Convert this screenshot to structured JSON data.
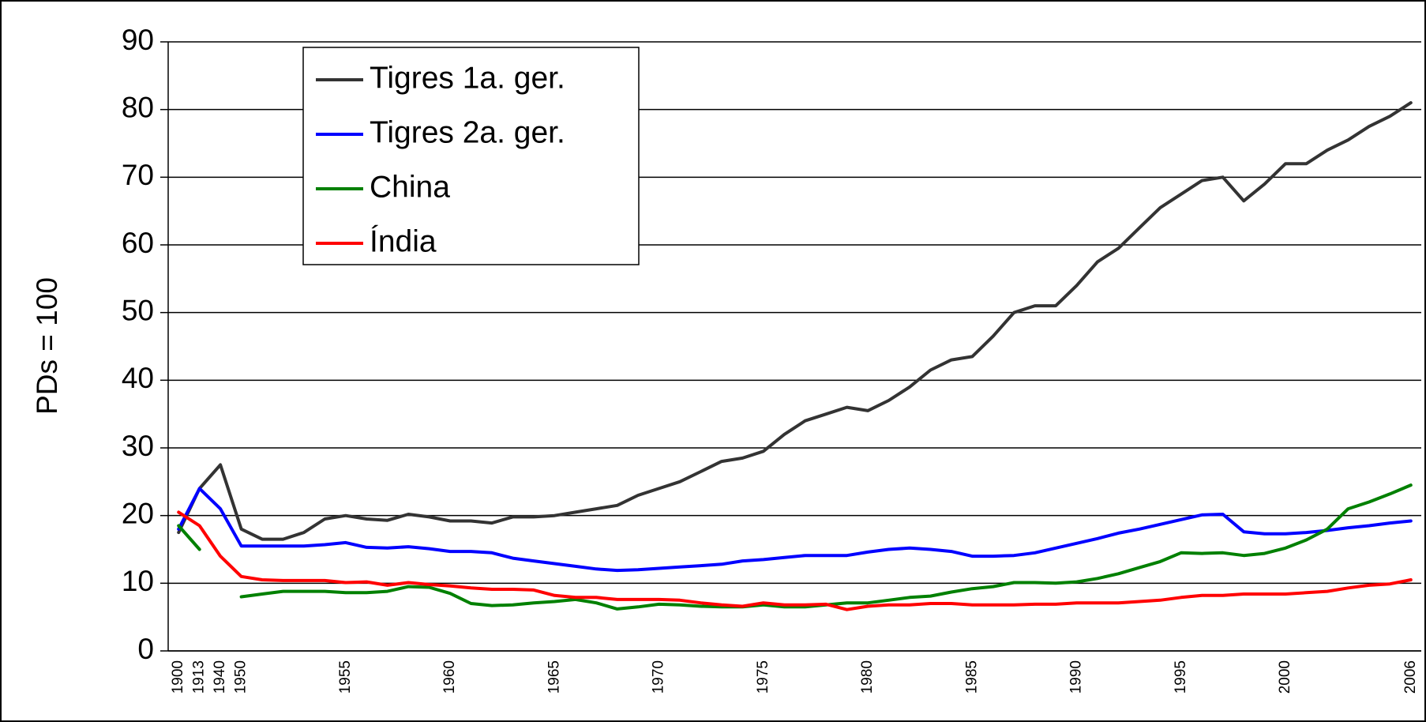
{
  "chart_data": {
    "type": "line",
    "y_label": "PDs = 100",
    "categories": [
      "1900",
      "1913",
      "1940",
      "1950",
      null,
      null,
      null,
      null,
      "1955",
      null,
      null,
      null,
      null,
      "1960",
      null,
      null,
      null,
      null,
      "1965",
      null,
      null,
      null,
      null,
      "1970",
      null,
      null,
      null,
      null,
      "1975",
      null,
      null,
      null,
      null,
      "1980",
      null,
      null,
      null,
      null,
      "1985",
      null,
      null,
      null,
      null,
      "1990",
      null,
      null,
      null,
      null,
      "1995",
      null,
      null,
      null,
      null,
      "2000",
      null,
      null,
      null,
      null,
      null,
      "2006"
    ],
    "series": [
      {
        "name": "Tigres 1a. ger.",
        "color": "#333333",
        "values": [
          17.5,
          24,
          27.5,
          18,
          16.5,
          16.5,
          17.5,
          19.5,
          20,
          19.5,
          19.3,
          20.2,
          19.8,
          19.2,
          19.2,
          18.9,
          19.8,
          19.8,
          20,
          20.5,
          21,
          21.5,
          23,
          24,
          25,
          26.5,
          28,
          28.5,
          29.5,
          32,
          34,
          35,
          36,
          35.5,
          37,
          39,
          41.5,
          43,
          43.5,
          46.5,
          50,
          51,
          51,
          54,
          57.5,
          59.5,
          62.5,
          65.5,
          67.5,
          69.5,
          70,
          66.5,
          69,
          72,
          72,
          74,
          75.5,
          77.5,
          79,
          81
        ]
      },
      {
        "name": "Tigres 2a. ger.",
        "color": "#0000ff",
        "values": [
          18,
          24,
          21,
          15.5,
          15.5,
          15.5,
          15.5,
          15.7,
          16,
          15.3,
          15.2,
          15.4,
          15.1,
          14.7,
          14.7,
          14.5,
          13.7,
          13.3,
          12.9,
          12.5,
          12.1,
          11.9,
          12,
          12.2,
          12.4,
          12.6,
          12.8,
          13.3,
          13.5,
          13.8,
          14.1,
          14.1,
          14.1,
          14.6,
          15,
          15.2,
          15,
          14.7,
          14,
          14,
          14.1,
          14.5,
          15.2,
          15.9,
          16.6,
          17.4,
          18,
          18.7,
          19.4,
          20.1,
          20.2,
          17.6,
          17.3,
          17.3,
          17.5,
          17.8,
          18.2,
          18.5,
          18.9,
          19.2
        ]
      },
      {
        "name": "China",
        "color": "#008000",
        "values": [
          18.5,
          15,
          null,
          8,
          8.4,
          8.8,
          8.8,
          8.8,
          8.6,
          8.6,
          8.8,
          9.5,
          9.4,
          8.5,
          7,
          6.7,
          6.8,
          7.1,
          7.3,
          7.6,
          7.1,
          6.2,
          6.5,
          6.9,
          6.8,
          6.6,
          6.5,
          6.5,
          6.8,
          6.5,
          6.5,
          6.8,
          7.1,
          7.1,
          7.5,
          7.9,
          8.1,
          8.7,
          9.2,
          9.5,
          10.1,
          10.1,
          10,
          10.2,
          10.7,
          11.4,
          12.3,
          13.2,
          14.5,
          14.4,
          14.5,
          14.1,
          14.4,
          15.2,
          16.4,
          18,
          21,
          22,
          23.2,
          24.5
        ]
      },
      {
        "name": "Índia",
        "color": "#ff0000",
        "values": [
          20.5,
          18.5,
          14,
          11,
          10.5,
          10.4,
          10.4,
          10.4,
          10.1,
          10.2,
          9.7,
          10.1,
          9.8,
          9.6,
          9.3,
          9.1,
          9.1,
          9,
          8.2,
          7.9,
          7.9,
          7.6,
          7.6,
          7.6,
          7.5,
          7.1,
          6.8,
          6.6,
          7.1,
          6.8,
          6.8,
          6.9,
          6.1,
          6.6,
          6.8,
          6.8,
          7,
          7,
          6.8,
          6.8,
          6.8,
          6.9,
          6.9,
          7.1,
          7.1,
          7.1,
          7.3,
          7.5,
          7.9,
          8.2,
          8.2,
          8.4,
          8.4,
          8.4,
          8.6,
          8.8,
          9.3,
          9.7,
          9.9,
          10.5
        ]
      }
    ],
    "ylim": [
      0,
      90
    ],
    "yticks": [
      0,
      10,
      20,
      30,
      40,
      50,
      60,
      70,
      80,
      90
    ],
    "grid": true,
    "legend": "upper-left"
  }
}
